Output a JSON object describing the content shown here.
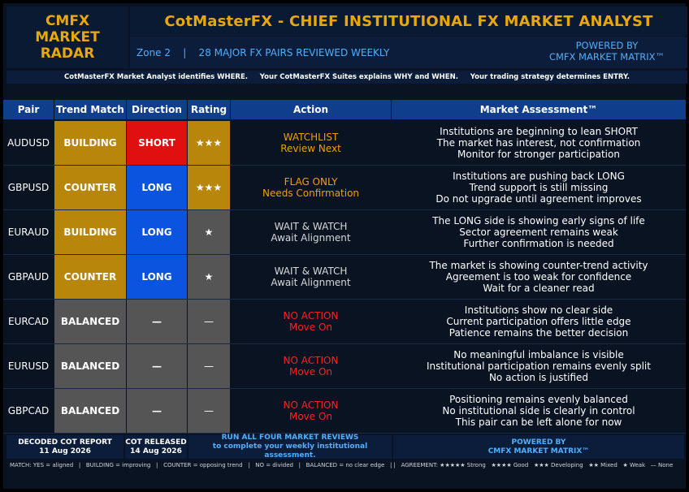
{
  "logo": {
    "line1": "CMFX",
    "line2": "MARKET RADAR"
  },
  "title": "CotMasterFX - CHIEF INSTITUTIONAL FX MARKET ANALYST",
  "subtitle": "Zone 2    |    28 MAJOR FX PAIRS REVIEWED WEEKLY",
  "powered": {
    "line1": "POWERED BY",
    "line2": "CMFX MARKET MATRIX™"
  },
  "info": "CotMasterFX Market Analyst identifies WHERE.     Your CotMasterFX Suites explains WHY and WHEN.     Your trading strategy determines ENTRY.",
  "headers": {
    "pair": "Pair",
    "trend": "Trend Match",
    "direction": "Direction",
    "rating": "Rating",
    "action": "Action",
    "assessment": "Market Assessment™"
  },
  "colors": {
    "gold": "#b8860b",
    "red": "#e01010",
    "blue": "#0a54e0",
    "gray": "#555555",
    "orange": "#f0a000",
    "alert": "#ff2020"
  },
  "rows": [
    {
      "pair": "AUDUSD",
      "trend": "BUILDING",
      "direction": "SHORT",
      "rating": "★★★",
      "action1": "WATCHLIST",
      "action2": "Review Next",
      "a1": "Institutions are beginning to lean SHORT",
      "a2": "The market has interest, not confirmation",
      "a3": "Monitor for stronger participation"
    },
    {
      "pair": "GBPUSD",
      "trend": "COUNTER",
      "direction": "LONG",
      "rating": "★★★",
      "action1": "FLAG ONLY",
      "action2": "Needs Confirmation",
      "a1": "Institutions are pushing back LONG",
      "a2": "Trend support is still missing",
      "a3": "Do not upgrade until agreement improves"
    },
    {
      "pair": "EURAUD",
      "trend": "BUILDING",
      "direction": "LONG",
      "rating": "★",
      "action1": "WAIT & WATCH",
      "action2": "Await Alignment",
      "a1": "The LONG side is showing early signs of life",
      "a2": "Sector agreement remains weak",
      "a3": "Further confirmation is needed"
    },
    {
      "pair": "GBPAUD",
      "trend": "COUNTER",
      "direction": "LONG",
      "rating": "★",
      "action1": "WAIT & WATCH",
      "action2": "Await Alignment",
      "a1": "The market is showing counter-trend activity",
      "a2": "Agreement is too weak for confidence",
      "a3": "Wait for a cleaner read"
    },
    {
      "pair": "EURCAD",
      "trend": "BALANCED",
      "direction": "—",
      "rating": "—",
      "action1": "NO ACTION",
      "action2": "Move On",
      "a1": "Institutions show no clear side",
      "a2": "Current participation offers little edge",
      "a3": "Patience remains the better decision"
    },
    {
      "pair": "EURUSD",
      "trend": "BALANCED",
      "direction": "—",
      "rating": "—",
      "action1": "NO ACTION",
      "action2": "Move On",
      "a1": "No meaningful imbalance is visible",
      "a2": "Institutional participation remains evenly split",
      "a3": "No action is justified"
    },
    {
      "pair": "GBPCAD",
      "trend": "BALANCED",
      "direction": "—",
      "rating": "—",
      "action1": "NO ACTION",
      "action2": "Move On",
      "a1": "Positioning remains evenly balanced",
      "a2": "No institutional side is clearly in control",
      "a3": "This pair can be left alone for now"
    }
  ],
  "footer": {
    "decoded_label": "DECODED COT REPORT",
    "decoded_date": "11 Aug 2026",
    "released_label": "COT RELEASED",
    "released_date": "14 Aug 2026",
    "run_line1": "RUN ALL FOUR MARKET REVIEWS",
    "run_line2": "to complete your weekly institutional assessment.",
    "powered1": "POWERED BY",
    "powered2": "CMFX MARKET MATRIX™"
  },
  "legend": "MATCH: YES = aligned   |   BUILDING = improving   |   COUNTER = opposing trend   |   NO = divided   |   BALANCED = no clear edge   | |   AGREEMENT: ★★★★★ Strong   ★★★★ Good   ★★★ Developing   ★★ Mixed   ★ Weak   — None"
}
